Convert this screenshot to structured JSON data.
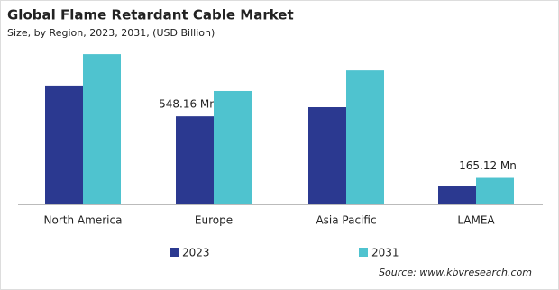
{
  "chart_data": {
    "type": "bar",
    "title": "Global Flame Retardant Cable Market",
    "subtitle": "Size, by Region, 2023, 2031, (USD Billion)",
    "categories": [
      "North America",
      "Europe",
      "Asia Pacific",
      "LAMEA"
    ],
    "series": [
      {
        "name": "2023",
        "color": "#2b3990",
        "values": [
          740,
          548.16,
          605,
          112
        ],
        "value_labels": [
          null,
          "548.16  Mn",
          null,
          null
        ]
      },
      {
        "name": "2031",
        "color": "#4fc3cf",
        "values": [
          935,
          706,
          834,
          165.12
        ],
        "value_labels": [
          null,
          null,
          null,
          "165.12  Mn"
        ]
      }
    ],
    "source": "Source: www.kbvresearch.com"
  }
}
